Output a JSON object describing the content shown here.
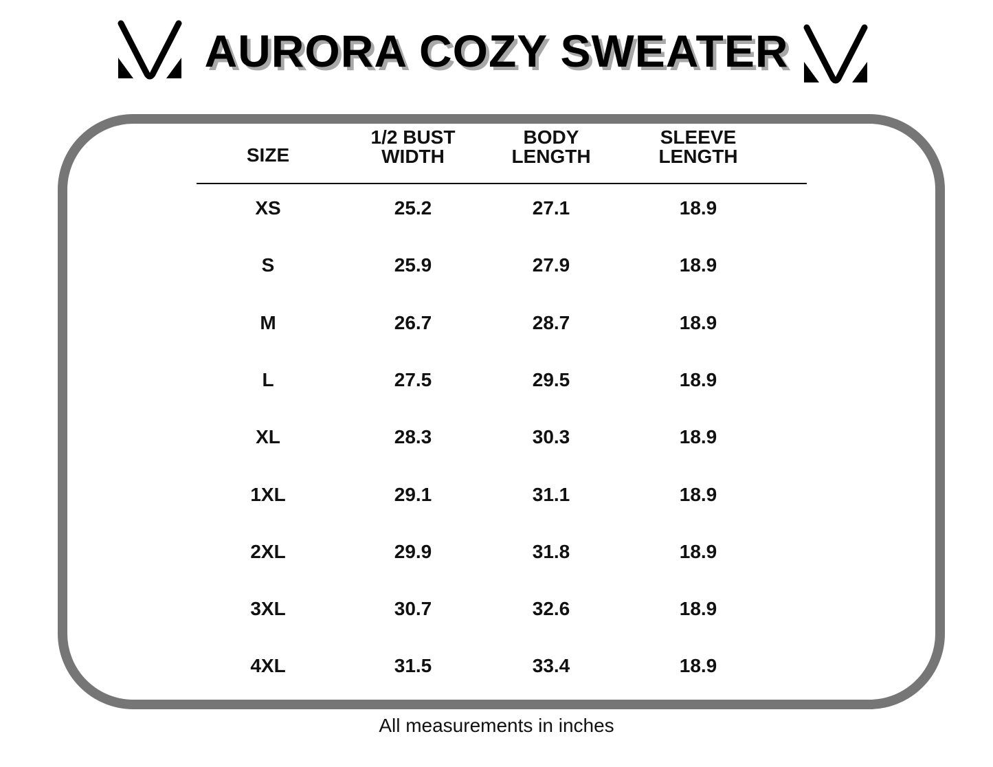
{
  "title": "AURORA COZY SWEATER",
  "logo": {
    "icon": "v-logo-icon"
  },
  "table": {
    "headers": [
      [
        "SIZE"
      ],
      [
        "1/2 BUST",
        "WIDTH"
      ],
      [
        "BODY",
        "LENGTH"
      ],
      [
        "SLEEVE",
        "LENGTH"
      ]
    ],
    "rows": [
      [
        "XS",
        "25.2",
        "27.1",
        "18.9"
      ],
      [
        "S",
        "25.9",
        "27.9",
        "18.9"
      ],
      [
        "M",
        "26.7",
        "28.7",
        "18.9"
      ],
      [
        "L",
        "27.5",
        "29.5",
        "18.9"
      ],
      [
        "XL",
        "28.3",
        "30.3",
        "18.9"
      ],
      [
        "1XL",
        "29.1",
        "31.1",
        "18.9"
      ],
      [
        "2XL",
        "29.9",
        "31.8",
        "18.9"
      ],
      [
        "3XL",
        "30.7",
        "32.6",
        "18.9"
      ],
      [
        "4XL",
        "31.5",
        "33.4",
        "18.9"
      ]
    ]
  },
  "footer": "All measurements in inches",
  "colors": {
    "frame": "#767676",
    "title_shadow": "#a8a8a8"
  }
}
